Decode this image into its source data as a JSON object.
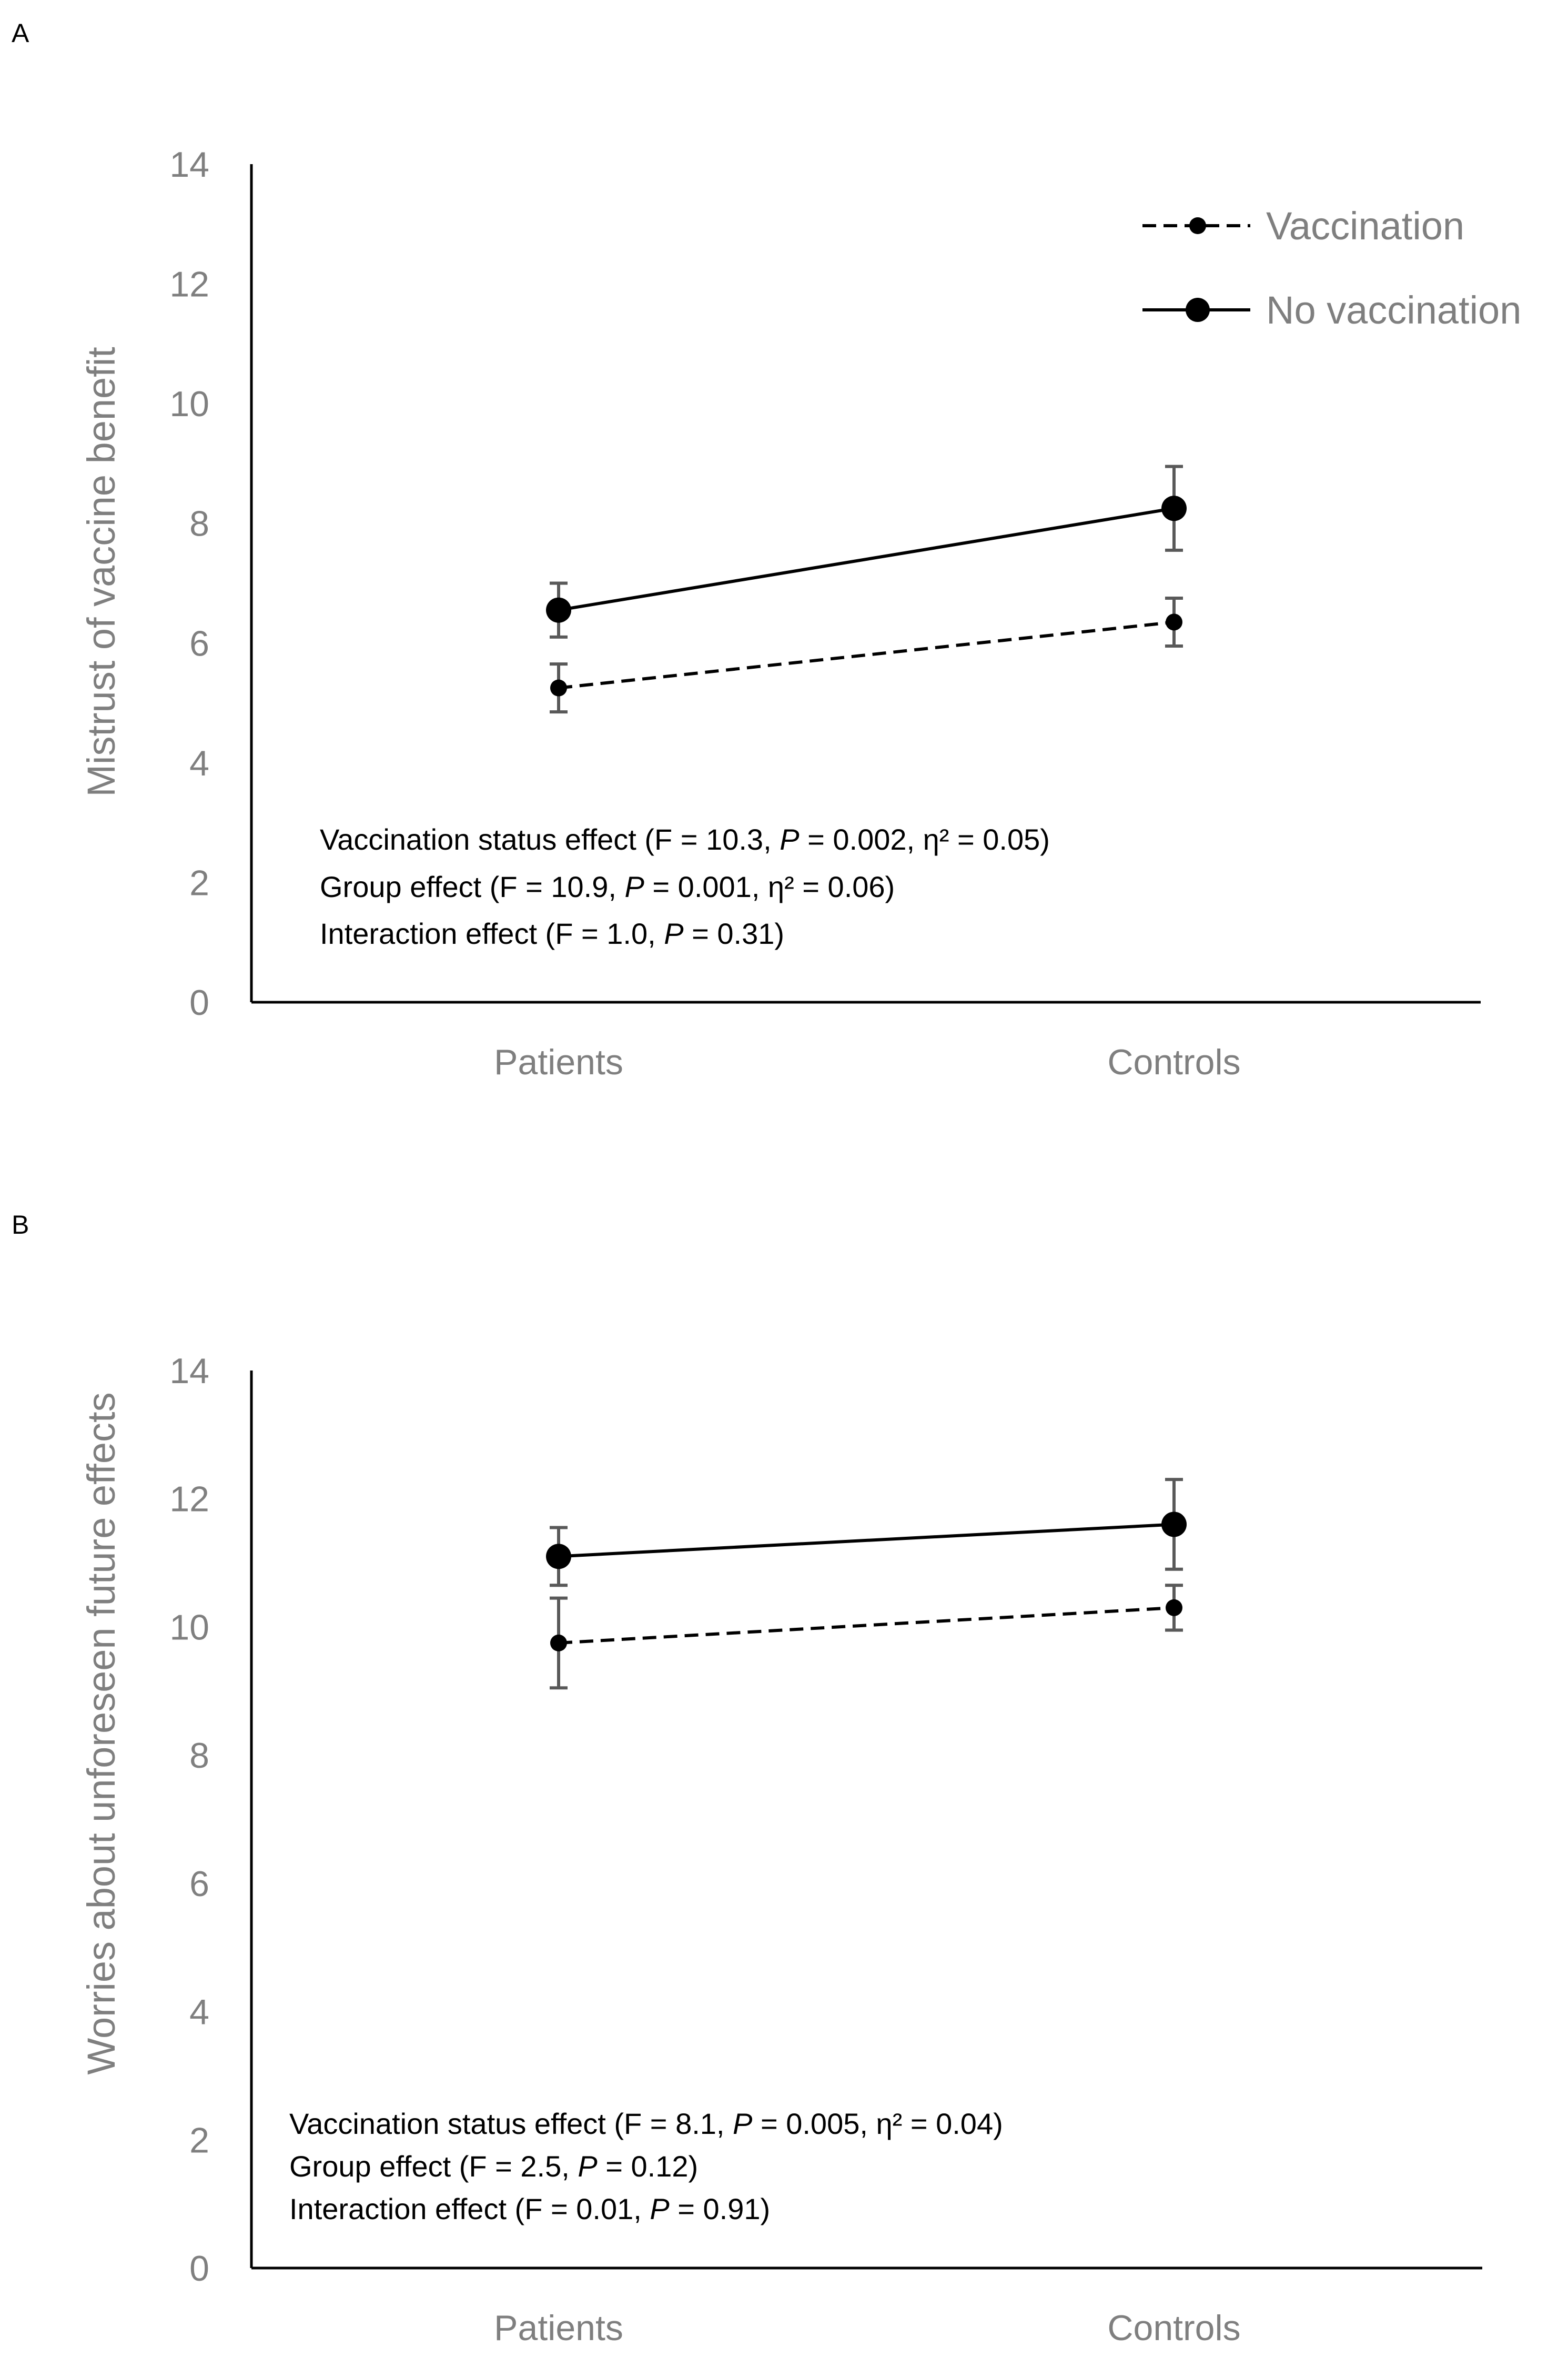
{
  "chart_data": [
    {
      "panel": "A",
      "type": "line",
      "ylabel": "Mistrust of vaccine benefit",
      "xlabel": "",
      "ylim": [
        0,
        14
      ],
      "yticks": [
        "0",
        "2",
        "4",
        "6",
        "8",
        "10",
        "12",
        "14"
      ],
      "categories": [
        "Patients",
        "Controls"
      ],
      "series": [
        {
          "name": "Vaccination",
          "style": "dashed",
          "values": [
            5.25,
            6.35
          ],
          "error": [
            0.4,
            0.4
          ]
        },
        {
          "name": "No vaccination",
          "style": "solid",
          "values": [
            6.55,
            8.25
          ],
          "error": [
            0.45,
            0.7
          ]
        }
      ],
      "legend": {
        "placement": "top-right",
        "entries": [
          "Vaccination",
          "No vaccination"
        ]
      },
      "annotations": [
        {
          "text": "Vaccination status effect (F = 10.3, ",
          "p": "P",
          "rest": " = 0.002, η² = 0.05)"
        },
        {
          "text": "Group effect (F = 10.9, ",
          "p": "P",
          "rest": " = 0.001, η² = 0.06)"
        },
        {
          "text": "Interaction effect (F = 1.0, ",
          "p": "P",
          "rest": " = 0.31)"
        }
      ]
    },
    {
      "panel": "B",
      "type": "line",
      "ylabel": "Worries about unforeseen future effects",
      "xlabel": "",
      "ylim": [
        0,
        14
      ],
      "yticks": [
        "0",
        "2",
        "4",
        "6",
        "8",
        "10",
        "12",
        "14"
      ],
      "categories": [
        "Patients",
        "Controls"
      ],
      "series": [
        {
          "name": "Vaccination",
          "style": "dashed",
          "values": [
            9.75,
            10.3
          ],
          "error": [
            0.7,
            0.35
          ]
        },
        {
          "name": "No vaccination",
          "style": "solid",
          "values": [
            11.1,
            11.6
          ],
          "error": [
            0.45,
            0.7
          ]
        }
      ],
      "annotations": [
        {
          "text": "Vaccination status effect (F = 8.1, ",
          "p": "P",
          "rest": " = 0.005, η² = 0.04)"
        },
        {
          "text": "Group effect (F = 2.5, ",
          "p": "P",
          "rest": " = 0.12)"
        },
        {
          "text": "Interaction effect  (F = 0.01, ",
          "p": "P",
          "rest": " = 0.91)"
        }
      ]
    }
  ],
  "colors": {
    "axis": "#000000",
    "tick_text": "#7f7f7f",
    "series": "#000000",
    "error_bar": "#595959"
  }
}
